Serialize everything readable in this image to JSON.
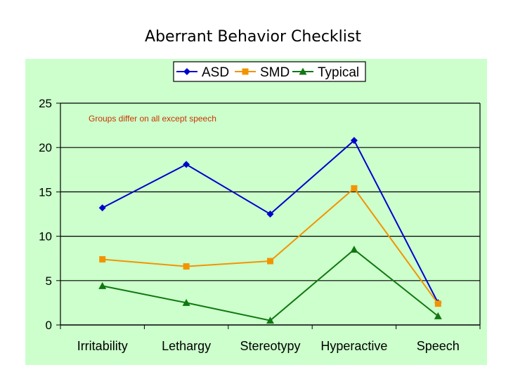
{
  "slide": {
    "title": "Aberrant Behavior Checklist"
  },
  "chart_data": {
    "type": "line",
    "categories": [
      "Irritability",
      "Lethargy",
      "Stereotypy",
      "Hyperactive",
      "Speech"
    ],
    "series": [
      {
        "name": "ASD",
        "values": [
          13.2,
          18.1,
          12.5,
          20.8,
          2.5
        ],
        "color": "#0000cc",
        "marker": "diamond"
      },
      {
        "name": "SMD",
        "values": [
          7.4,
          6.6,
          7.2,
          15.4,
          2.4
        ],
        "color": "#f29400",
        "marker": "square"
      },
      {
        "name": "Typical",
        "values": [
          4.4,
          2.5,
          0.5,
          8.5,
          1.0
        ],
        "color": "#117711",
        "marker": "triangle"
      }
    ],
    "ylim": [
      0,
      25
    ],
    "yticks": [
      0,
      5,
      10,
      15,
      20,
      25
    ],
    "annotation": "Groups differ on all except speech",
    "annotation_color": "#cc3300",
    "legend_position": "top",
    "grid": true,
    "plot_background": "#ccffcc"
  }
}
